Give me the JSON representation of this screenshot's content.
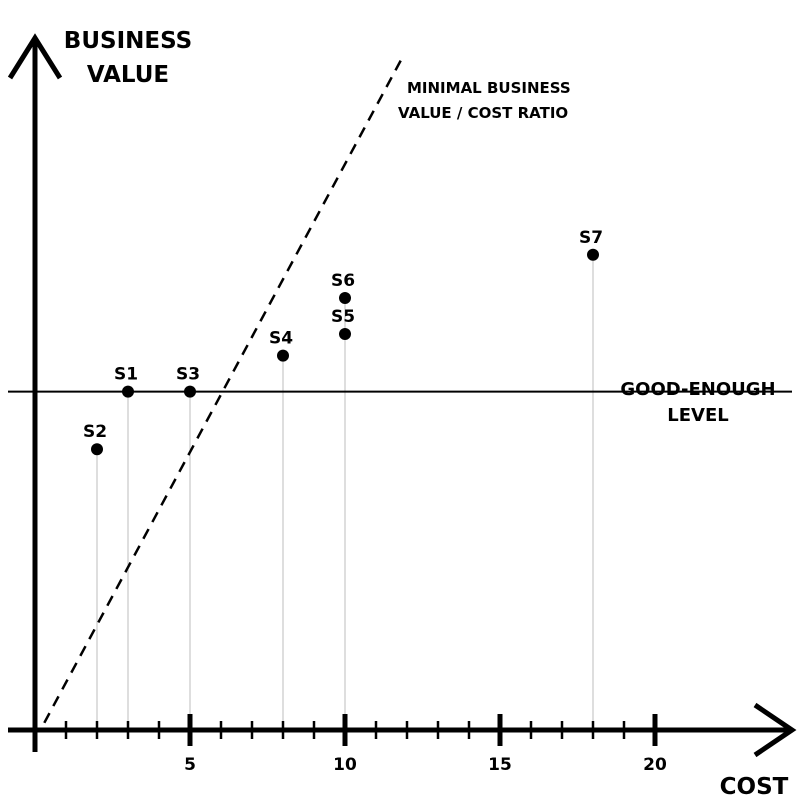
{
  "chart_data": {
    "type": "scatter",
    "ylabel": [
      "BUSINESS",
      "VALUE"
    ],
    "xlabel": "COST",
    "xlim": [
      0,
      24
    ],
    "ylim": [
      0,
      100
    ],
    "x_major_ticks": [
      5,
      10,
      15,
      20
    ],
    "x_minor_ticks": [
      1,
      2,
      3,
      4,
      6,
      7,
      8,
      9,
      11,
      12,
      13,
      14,
      16,
      17,
      18,
      19
    ],
    "grid": false,
    "points": [
      {
        "label": "S1",
        "x": 3,
        "y": 47
      },
      {
        "label": "S2",
        "x": 2,
        "y": 39
      },
      {
        "label": "S3",
        "x": 5,
        "y": 47
      },
      {
        "label": "S4",
        "x": 8,
        "y": 52
      },
      {
        "label": "S5",
        "x": 10,
        "y": 55
      },
      {
        "label": "S6",
        "x": 10,
        "y": 60
      },
      {
        "label": "S7",
        "x": 18,
        "y": 66
      }
    ],
    "reference_lines": {
      "good_enough": {
        "y": 47,
        "label": [
          "GOOD-ENOUGH",
          "LEVEL"
        ]
      },
      "ratio": {
        "x0": 0.3,
        "y0": 1,
        "x1": 11.8,
        "y1": 93,
        "label": [
          "MINIMAL BUSINESS",
          "VALUE / COST RATIO"
        ],
        "style": "dashed"
      }
    }
  }
}
